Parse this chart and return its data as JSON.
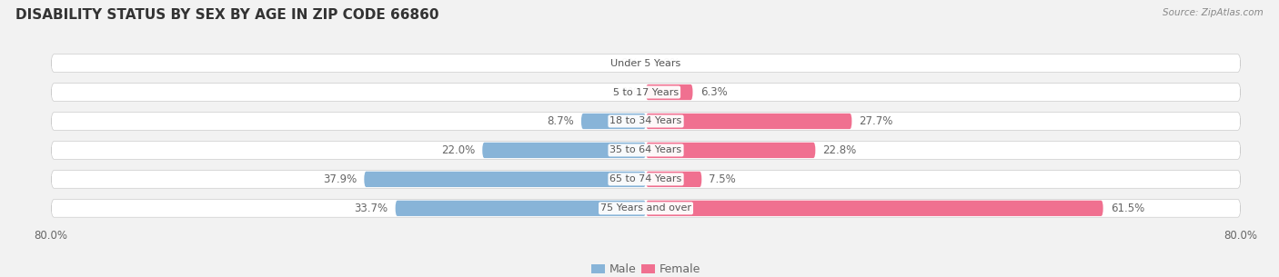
{
  "title": "DISABILITY STATUS BY SEX BY AGE IN ZIP CODE 66860",
  "source": "Source: ZipAtlas.com",
  "categories": [
    "Under 5 Years",
    "5 to 17 Years",
    "18 to 34 Years",
    "35 to 64 Years",
    "65 to 74 Years",
    "75 Years and over"
  ],
  "male_values": [
    0.0,
    0.0,
    8.7,
    22.0,
    37.9,
    33.7
  ],
  "female_values": [
    0.0,
    6.3,
    27.7,
    22.8,
    7.5,
    61.5
  ],
  "male_color": "#88b4d8",
  "female_color": "#f07090",
  "axis_limit": 80.0,
  "bg_color": "#f2f2f2",
  "bar_bg_color": "#e4e4e4",
  "bar_height": 0.62,
  "title_fontsize": 11,
  "label_fontsize": 8.5,
  "tick_fontsize": 8.5,
  "category_fontsize": 8,
  "legend_fontsize": 9,
  "label_color": "#666666",
  "title_color": "#333333",
  "source_color": "#888888",
  "category_label_color": "#555555"
}
